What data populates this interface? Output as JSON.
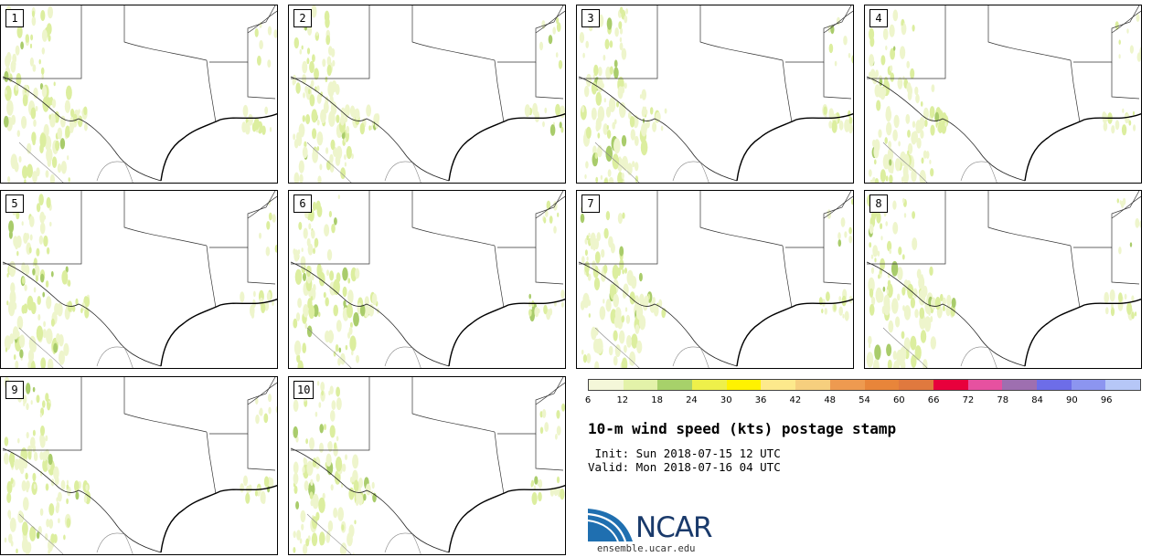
{
  "panels": [
    "1",
    "2",
    "3",
    "4",
    "5",
    "6",
    "7",
    "8",
    "9",
    "10"
  ],
  "colorbar": {
    "colors": [
      "#f4f7d9",
      "#e3f2a9",
      "#a7d16a",
      "#eef04a",
      "#fff200",
      "#fde98c",
      "#f6cf7e",
      "#ee9a50",
      "#e8853a",
      "#e0793e",
      "#e8003c",
      "#e651a0",
      "#9e6fb0",
      "#6d6de8",
      "#8c95f0",
      "#b6c7f7"
    ],
    "labels": [
      "6",
      "12",
      "18",
      "24",
      "30",
      "36",
      "42",
      "48",
      "54",
      "60",
      "66",
      "72",
      "78",
      "84",
      "90",
      "96"
    ]
  },
  "title": "10-m wind speed (kts) postage stamp",
  "init": " Init: Sun 2018-07-15 12 UTC",
  "valid": "Valid: Mon 2018-07-16 04 UTC",
  "logo": {
    "text": "NCAR",
    "site": "ensemble.ucar.edu",
    "color": "#1a3a6b",
    "swoosh_color": "#1f6fb0"
  },
  "field_colors": {
    "light": "#eef5cc",
    "mid": "#dcee9f",
    "dark": "#a9cc6b"
  }
}
